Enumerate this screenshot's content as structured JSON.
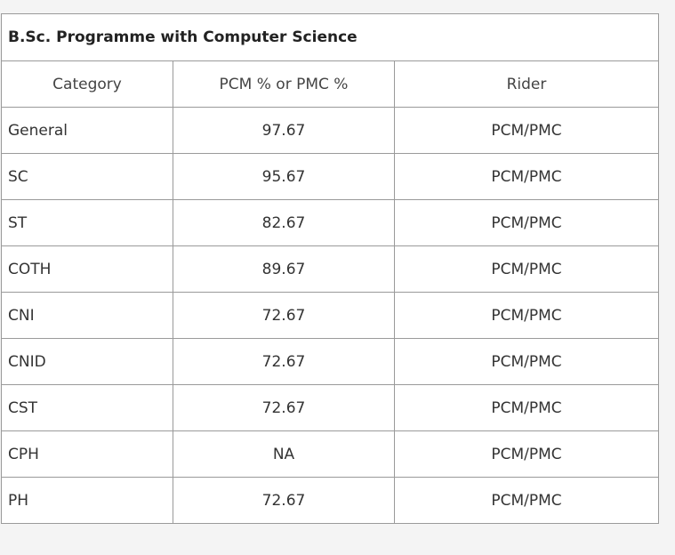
{
  "table": {
    "title": "B.Sc. Programme with Computer Science",
    "headers": [
      "Category",
      "PCM % or PMC %",
      "Rider"
    ],
    "rows": [
      {
        "category": "General",
        "value": "97.67",
        "rider": "PCM/PMC"
      },
      {
        "category": "SC",
        "value": "95.67",
        "rider": "PCM/PMC"
      },
      {
        "category": "ST",
        "value": "82.67",
        "rider": "PCM/PMC"
      },
      {
        "category": "COTH",
        "value": "89.67",
        "rider": "PCM/PMC"
      },
      {
        "category": "CNI",
        "value": "72.67",
        "rider": "PCM/PMC"
      },
      {
        "category": "CNID",
        "value": "72.67",
        "rider": "PCM/PMC"
      },
      {
        "category": "CST",
        "value": "72.67",
        "rider": "PCM/PMC"
      },
      {
        "category": "CPH",
        "value": "NA",
        "rider": "PCM/PMC"
      },
      {
        "category": "PH",
        "value": "72.67",
        "rider": "PCM/PMC"
      }
    ]
  }
}
